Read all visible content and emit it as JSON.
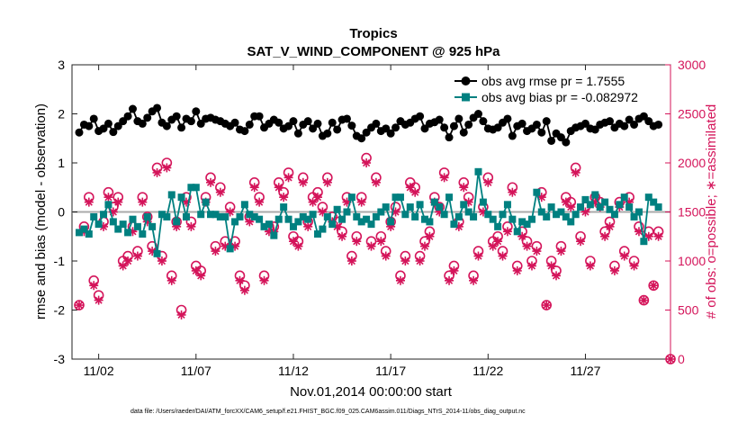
{
  "chart_data": {
    "type": "line",
    "title": "Tropics",
    "subtitle": "SAT_V_WIND_COMPONENT @ 925 hPa",
    "xlabel": "Nov.01,2014 00:00:00 start",
    "ylabel": "rmse and bias (model - observation)",
    "y2label": "# of obs: o=possible; ∗=assimilated",
    "footer": "data file: /Users/raeder/DAI/ATM_forcXX/CAM6_setup/f.e21.FHIST_BGC.f09_025.CAM6assim.011/Diags_NTrS_2014-11/obs_diag_output.nc",
    "xlim": [
      0,
      30
    ],
    "ylim": [
      -3,
      3
    ],
    "y2lim": [
      0,
      3000
    ],
    "x_ticks": [
      1,
      6,
      11,
      16,
      21,
      26
    ],
    "x_tick_labels": [
      "11/02",
      "11/07",
      "11/12",
      "11/17",
      "11/22",
      "11/27"
    ],
    "y_ticks": [
      -3,
      -2,
      -1,
      0,
      1,
      2,
      3
    ],
    "y_tick_labels": [
      "-3",
      "-2",
      "-1",
      "0",
      "1",
      "2",
      "3"
    ],
    "y2_ticks": [
      0,
      500,
      1000,
      1500,
      2000,
      2500,
      3000
    ],
    "y2_tick_labels": [
      "0",
      "500",
      "1000",
      "1500",
      "2000",
      "2500",
      "3000"
    ],
    "legend_position": "top-right",
    "colors": {
      "rmse": "#000000",
      "bias": "#008080",
      "obs": "#d4145a",
      "zero_line": "#aaaaaa"
    },
    "series": [
      {
        "name": "obs avg rmse pr = 1.7555",
        "axis": "left",
        "marker": "circle",
        "x": [
          0.0,
          0.25,
          0.5,
          0.75,
          1.0,
          1.25,
          1.5,
          1.75,
          2.0,
          2.25,
          2.5,
          2.75,
          3.0,
          3.25,
          3.5,
          3.75,
          4.0,
          4.25,
          4.5,
          4.75,
          5.0,
          5.25,
          5.5,
          5.75,
          6.0,
          6.25,
          6.5,
          6.75,
          7.0,
          7.25,
          7.5,
          7.75,
          8.0,
          8.25,
          8.5,
          8.75,
          9.0,
          9.25,
          9.5,
          9.75,
          10.0,
          10.25,
          10.5,
          10.75,
          11.0,
          11.25,
          11.5,
          11.75,
          12.0,
          12.25,
          12.5,
          12.75,
          13.0,
          13.25,
          13.5,
          13.75,
          14.0,
          14.25,
          14.5,
          14.75,
          15.0,
          15.25,
          15.5,
          15.75,
          16.0,
          16.25,
          16.5,
          16.75,
          17.0,
          17.25,
          17.5,
          17.75,
          18.0,
          18.25,
          18.5,
          18.75,
          19.0,
          19.25,
          19.5,
          19.75,
          20.0,
          20.25,
          20.5,
          20.75,
          21.0,
          21.25,
          21.5,
          21.75,
          22.0,
          22.25,
          22.5,
          22.75,
          23.0,
          23.25,
          23.5,
          23.75,
          24.0,
          24.25,
          24.5,
          24.75,
          25.0,
          25.25,
          25.5,
          25.75,
          26.0,
          26.25,
          26.5,
          26.75,
          27.0,
          27.25,
          27.5,
          27.75,
          28.0,
          28.25,
          28.5,
          28.75,
          29.0,
          29.25,
          29.5,
          29.75
        ],
        "values": [
          1.62,
          1.78,
          1.75,
          1.9,
          1.65,
          1.7,
          1.8,
          1.63,
          1.75,
          1.85,
          1.95,
          2.1,
          1.85,
          1.8,
          1.92,
          2.05,
          2.12,
          1.82,
          1.75,
          1.88,
          1.95,
          1.72,
          1.9,
          1.85,
          2.05,
          1.8,
          1.9,
          1.92,
          1.88,
          1.85,
          1.8,
          1.75,
          1.82,
          1.68,
          1.65,
          1.78,
          1.95,
          1.95,
          1.72,
          1.8,
          1.88,
          1.82,
          1.7,
          1.75,
          1.85,
          1.6,
          1.78,
          1.85,
          1.7,
          1.8,
          1.55,
          1.6,
          1.82,
          1.68,
          1.88,
          1.9,
          1.76,
          1.55,
          1.5,
          1.62,
          1.72,
          1.8,
          1.65,
          1.7,
          1.6,
          1.72,
          1.85,
          1.78,
          1.82,
          1.9,
          1.95,
          1.7,
          1.8,
          1.83,
          1.88,
          1.72,
          1.52,
          1.75,
          1.9,
          1.62,
          1.78,
          1.92,
          2.0,
          1.85,
          1.7,
          1.68,
          1.72,
          1.82,
          1.9,
          1.55,
          1.75,
          1.8,
          1.65,
          1.7,
          1.78,
          1.62,
          1.85,
          1.45,
          1.6,
          1.52,
          1.42,
          1.65,
          1.72,
          1.75,
          1.8,
          1.7,
          1.68,
          1.78,
          1.82,
          1.85,
          1.72,
          1.8,
          1.75,
          1.88,
          1.78,
          1.9,
          1.95,
          1.85,
          1.75,
          1.78
        ]
      },
      {
        "name": "obs avg bias pr = -0.082972",
        "axis": "left",
        "marker": "square",
        "x": [
          0.0,
          0.25,
          0.5,
          0.75,
          1.0,
          1.25,
          1.5,
          1.75,
          2.0,
          2.25,
          2.5,
          2.75,
          3.0,
          3.25,
          3.5,
          3.75,
          4.0,
          4.25,
          4.5,
          4.75,
          5.0,
          5.25,
          5.5,
          5.75,
          6.0,
          6.25,
          6.5,
          6.75,
          7.0,
          7.25,
          7.5,
          7.75,
          8.0,
          8.25,
          8.5,
          8.75,
          9.0,
          9.25,
          9.5,
          9.75,
          10.0,
          10.25,
          10.5,
          10.75,
          11.0,
          11.25,
          11.5,
          11.75,
          12.0,
          12.25,
          12.5,
          12.75,
          13.0,
          13.25,
          13.5,
          13.75,
          14.0,
          14.25,
          14.5,
          14.75,
          15.0,
          15.25,
          15.5,
          15.75,
          16.0,
          16.25,
          16.5,
          16.75,
          17.0,
          17.25,
          17.5,
          17.75,
          18.0,
          18.25,
          18.5,
          18.75,
          19.0,
          19.25,
          19.5,
          19.75,
          20.0,
          20.25,
          20.5,
          20.75,
          21.0,
          21.25,
          21.5,
          21.75,
          22.0,
          22.25,
          22.5,
          22.75,
          23.0,
          23.25,
          23.5,
          23.75,
          24.0,
          24.25,
          24.5,
          24.75,
          25.0,
          25.25,
          25.5,
          25.75,
          26.0,
          26.25,
          26.5,
          26.75,
          27.0,
          27.25,
          27.5,
          27.75,
          28.0,
          28.25,
          28.5,
          28.75,
          29.0,
          29.25,
          29.5,
          29.75
        ],
        "values": [
          -0.42,
          -0.35,
          -0.45,
          -0.1,
          -0.25,
          -0.05,
          0.15,
          -0.2,
          -0.35,
          -0.25,
          -0.42,
          -0.15,
          -0.3,
          -0.45,
          -0.1,
          -0.3,
          -0.85,
          -0.05,
          -0.1,
          0.35,
          -0.2,
          0.3,
          -0.1,
          0.5,
          0.5,
          -0.05,
          0.2,
          -0.05,
          -0.05,
          -0.1,
          -0.1,
          -0.75,
          -0.2,
          -0.1,
          0.15,
          -0.05,
          -0.1,
          -0.15,
          -0.3,
          -0.25,
          -0.48,
          -0.15,
          0.1,
          -0.15,
          -0.3,
          -0.2,
          -0.1,
          -0.15,
          -0.05,
          -0.45,
          -0.35,
          -0.1,
          -0.25,
          0.05,
          -0.15,
          0.0,
          0.3,
          -0.1,
          -0.2,
          -0.15,
          -0.25,
          -0.1,
          0.0,
          0.1,
          -0.2,
          0.3,
          0.3,
          -0.05,
          0.1,
          -0.1,
          0.15,
          -0.15,
          -0.2,
          0.2,
          0.1,
          -0.05,
          0.3,
          -0.25,
          -0.1,
          0.15,
          0.0,
          -0.1,
          0.82,
          0.2,
          -0.05,
          -0.15,
          -0.3,
          -0.05,
          0.15,
          -0.15,
          -0.4,
          -0.2,
          -0.25,
          -0.15,
          0.4,
          0.0,
          -0.1,
          0.1,
          -0.05,
          0.0,
          -0.1,
          -0.2,
          -0.05,
          0.1,
          0.25,
          0.15,
          0.35,
          0.1,
          0.2,
          0.05,
          -0.05,
          0.15,
          0.3,
          0.1,
          -0.1,
          0.0,
          -0.6,
          0.3,
          0.2,
          0.1
        ]
      },
      {
        "name": "obs possible",
        "axis": "right",
        "marker": "open-circle",
        "x": [
          0.0,
          0.25,
          0.5,
          0.75,
          1.0,
          1.25,
          1.5,
          1.75,
          2.0,
          2.25,
          2.5,
          2.75,
          3.0,
          3.25,
          3.5,
          3.75,
          4.0,
          4.25,
          4.5,
          4.75,
          5.0,
          5.25,
          5.5,
          5.75,
          6.0,
          6.25,
          6.5,
          6.75,
          7.0,
          7.25,
          7.5,
          7.75,
          8.0,
          8.25,
          8.5,
          8.75,
          9.0,
          9.25,
          9.5,
          9.75,
          10.0,
          10.25,
          10.5,
          10.75,
          11.0,
          11.25,
          11.5,
          11.75,
          12.0,
          12.25,
          12.5,
          12.75,
          13.0,
          13.25,
          13.5,
          13.75,
          14.0,
          14.25,
          14.5,
          14.75,
          15.0,
          15.25,
          15.5,
          15.75,
          16.0,
          16.25,
          16.5,
          16.75,
          17.0,
          17.25,
          17.5,
          17.75,
          18.0,
          18.25,
          18.5,
          18.75,
          19.0,
          19.25,
          19.5,
          19.75,
          20.0,
          20.25,
          20.5,
          20.75,
          21.0,
          21.25,
          21.5,
          21.75,
          22.0,
          22.25,
          22.5,
          22.75,
          23.0,
          23.25,
          23.5,
          23.75,
          24.0,
          24.25,
          24.5,
          24.75,
          25.0,
          25.25,
          25.5,
          25.75,
          26.0,
          26.25,
          26.5,
          26.75,
          27.0,
          27.25,
          27.5,
          27.75,
          28.0,
          28.25,
          28.5,
          28.75,
          29.0,
          29.25,
          29.5,
          29.75
        ],
        "values": [
          550,
          1350,
          1650,
          800,
          650,
          1400,
          1700,
          1550,
          1650,
          1000,
          1050,
          1350,
          1100,
          1650,
          1450,
          1150,
          1950,
          1050,
          2000,
          850,
          1400,
          500,
          1650,
          1400,
          950,
          900,
          1650,
          1850,
          1150,
          1750,
          1200,
          1550,
          1200,
          850,
          750,
          1450,
          1800,
          1650,
          850,
          1350,
          1350,
          1800,
          1700,
          1900,
          1250,
          1200,
          1850,
          1400,
          1650,
          1700,
          1550,
          1850,
          1450,
          1400,
          1300,
          1650,
          1050,
          1250,
          1650,
          2050,
          1200,
          1850,
          1250,
          1100,
          1400,
          1550,
          850,
          1050,
          1800,
          1750,
          1050,
          1200,
          1300,
          1650,
          1550,
          1900,
          850,
          950,
          1400,
          1800,
          1650,
          850,
          1100,
          1550,
          1850,
          1200,
          1250,
          1100,
          1350,
          1750,
          950,
          1300,
          1200,
          1000,
          1150,
          1700,
          550,
          1000,
          900,
          1150,
          1650,
          1600,
          1950,
          1250,
          1550,
          1000,
          1650,
          1600,
          1300,
          1400,
          950,
          1600,
          1100,
          1650,
          1000,
          1350,
          600,
          1300,
          750,
          1300
        ]
      },
      {
        "name": "obs assimilated",
        "axis": "right",
        "marker": "asterisk",
        "x": [
          0.0,
          0.25,
          0.5,
          0.75,
          1.0,
          1.25,
          1.5,
          1.75,
          2.0,
          2.25,
          2.5,
          2.75,
          3.0,
          3.25,
          3.5,
          3.75,
          4.0,
          4.25,
          4.5,
          4.75,
          5.0,
          5.25,
          5.5,
          5.75,
          6.0,
          6.25,
          6.5,
          6.75,
          7.0,
          7.25,
          7.5,
          7.75,
          8.0,
          8.25,
          8.5,
          8.75,
          9.0,
          9.25,
          9.5,
          9.75,
          10.0,
          10.25,
          10.5,
          10.75,
          11.0,
          11.25,
          11.5,
          11.75,
          12.0,
          12.25,
          12.5,
          12.75,
          13.0,
          13.25,
          13.5,
          13.75,
          14.0,
          14.25,
          14.5,
          14.75,
          15.0,
          15.25,
          15.5,
          15.75,
          16.0,
          16.25,
          16.5,
          16.75,
          17.0,
          17.25,
          17.5,
          17.75,
          18.0,
          18.25,
          18.5,
          18.75,
          19.0,
          19.25,
          19.5,
          19.75,
          20.0,
          20.25,
          20.5,
          20.75,
          21.0,
          21.25,
          21.5,
          21.75,
          22.0,
          22.25,
          22.5,
          22.75,
          23.0,
          23.25,
          23.5,
          23.75,
          24.0,
          24.25,
          24.5,
          24.75,
          25.0,
          25.25,
          25.5,
          25.75,
          26.0,
          26.25,
          26.5,
          26.75,
          27.0,
          27.25,
          27.5,
          27.75,
          28.0,
          28.25,
          28.5,
          28.75,
          29.0,
          29.25,
          29.5,
          29.75
        ],
        "values": [
          550,
          1300,
          1600,
          750,
          600,
          1350,
          1650,
          1500,
          1600,
          950,
          1000,
          1300,
          1050,
          1600,
          1400,
          1100,
          1900,
          1000,
          1950,
          800,
          1350,
          450,
          1600,
          1350,
          900,
          850,
          1600,
          1800,
          1100,
          1700,
          1150,
          1500,
          1150,
          800,
          700,
          1400,
          1750,
          1600,
          800,
          1300,
          1300,
          1750,
          1650,
          1850,
          1200,
          1150,
          1800,
          1350,
          1600,
          1650,
          1500,
          1800,
          1400,
          1350,
          1250,
          1600,
          1000,
          1200,
          1600,
          2000,
          1150,
          1800,
          1200,
          1050,
          1350,
          1500,
          800,
          1000,
          1750,
          1700,
          1000,
          1150,
          1250,
          1600,
          1500,
          1850,
          800,
          900,
          1350,
          1750,
          1600,
          800,
          1050,
          1500,
          1800,
          1150,
          1200,
          1050,
          1300,
          1700,
          900,
          1250,
          1150,
          950,
          1100,
          1650,
          550,
          950,
          850,
          1100,
          1600,
          1550,
          1900,
          1200,
          1500,
          950,
          1600,
          1550,
          1250,
          1350,
          900,
          1550,
          1050,
          1600,
          950,
          1300,
          600,
          1250,
          750,
          1250
        ]
      }
    ]
  }
}
